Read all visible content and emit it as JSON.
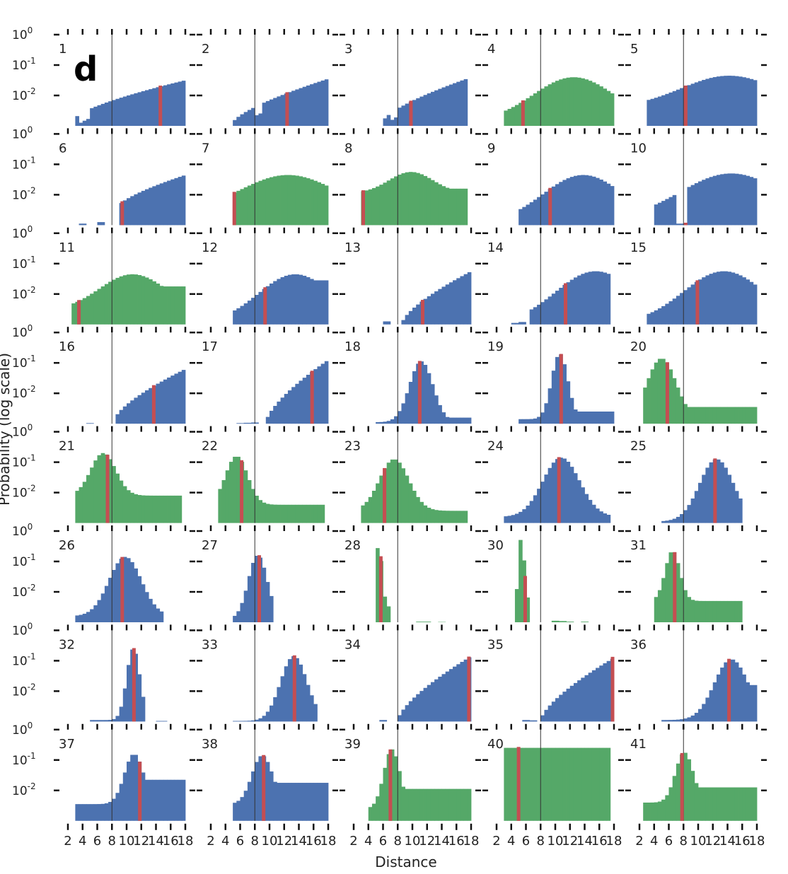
{
  "panel_label": "d",
  "xlabel": "Distance",
  "ylabel": "Probability (log scale)",
  "colors": {
    "blue": "#4c72b0",
    "green": "#55a868",
    "red": "#c44e52",
    "axis": "#111111",
    "refline": "#333333"
  },
  "chart_data": {
    "type": "bar",
    "layout": "small-multiples grid, 8 rows x 5 columns, shared axes",
    "scale_y": "log",
    "xlim": [
      2,
      18
    ],
    "ylim_log10": [
      -3.0,
      0
    ],
    "x_ticks": [
      2,
      4,
      6,
      8,
      10,
      12,
      14,
      16,
      18
    ],
    "x_tick_labels": [
      "2",
      "4",
      "6",
      "8",
      "10",
      "12",
      "14",
      "16",
      "18"
    ],
    "y_ticks_log10": [
      0,
      -1,
      -2
    ],
    "bins": 32,
    "reference_x": 8,
    "panels": [
      {
        "id": "1",
        "color": "blue",
        "marker_x": 14.6,
        "shape": "ramp",
        "start": 3,
        "end": 18,
        "lo": -2.75,
        "hi": -1.5,
        "dip": [
          4.2,
          0.3
        ]
      },
      {
        "id": "2",
        "color": "blue",
        "marker_x": 12.4,
        "shape": "ramp",
        "start": 5,
        "end": 18,
        "lo": -2.9,
        "hi": -1.45,
        "dip": [
          8.5,
          0.3
        ]
      },
      {
        "id": "3",
        "color": "blue",
        "marker_x": 9.8,
        "shape": "ramp",
        "start": 6,
        "end": 17.4,
        "lo": -2.85,
        "hi": -1.45,
        "dip": [
          7.5,
          0.25
        ]
      },
      {
        "id": "4",
        "color": "green",
        "marker_x": 5.6,
        "shape": "peak",
        "start": 3,
        "end": 18,
        "peak": 12.5,
        "peak_v": -1.4,
        "w": 5.5,
        "edge": -2.85
      },
      {
        "id": "5",
        "color": "blue",
        "marker_x": 8.3,
        "shape": "peak",
        "start": 3,
        "end": 18,
        "peak": 14.2,
        "peak_v": -1.35,
        "w": 6.5,
        "edge": -2.4
      },
      {
        "id": "6",
        "color": "blue",
        "marker_x": 9.4,
        "shape": "ramp",
        "start": 8.8,
        "end": 18,
        "lo": -2.4,
        "hi": -1.35,
        "tail": [
          [
            4,
            -2.95
          ],
          [
            6.5,
            -2.9
          ]
        ]
      },
      {
        "id": "7",
        "color": "green",
        "marker_x": 5.2,
        "shape": "peak",
        "start": 5,
        "end": 18,
        "peak": 12.5,
        "peak_v": -1.35,
        "w": 6.5,
        "edge": -2.6
      },
      {
        "id": "8",
        "color": "green",
        "marker_x": 3.3,
        "shape": "peak",
        "start": 3,
        "end": 17.4,
        "peak": 9.8,
        "peak_v": -1.25,
        "w": 3.0,
        "edge": -1.95,
        "floor": -1.8
      },
      {
        "id": "9",
        "color": "blue",
        "marker_x": 9.3,
        "shape": "peak",
        "start": 5,
        "end": 18,
        "peak": 13.8,
        "peak_v": -1.35,
        "w": 5.5,
        "edge": -2.95
      },
      {
        "id": "10",
        "color": "blue",
        "marker_x": 8.3,
        "shape": "peak",
        "start": 4,
        "end": 18,
        "peak": 14.5,
        "peak_v": -1.3,
        "w": 7.0,
        "edge": -2.85,
        "gap": [
          7,
          8.5
        ]
      },
      {
        "id": "11",
        "color": "green",
        "marker_x": 3.5,
        "shape": "peak",
        "start": 2.5,
        "end": 18,
        "peak": 10.8,
        "peak_v": -1.35,
        "w": 4.5,
        "edge": -2.55,
        "floor": -1.75
      },
      {
        "id": "12",
        "color": "blue",
        "marker_x": 9.4,
        "shape": "peak",
        "start": 5,
        "end": 18,
        "peak": 13.5,
        "peak_v": -1.35,
        "w": 5.0,
        "edge": -2.95,
        "floor": -1.55
      },
      {
        "id": "13",
        "color": "blue",
        "marker_x": 11.4,
        "shape": "ramp",
        "start": 8.6,
        "end": 18,
        "lo": -2.95,
        "hi": -1.25,
        "tail": [
          [
            6.5,
            -2.9
          ]
        ]
      },
      {
        "id": "14",
        "color": "blue",
        "marker_x": 11.4,
        "shape": "peak",
        "start": 6.5,
        "end": 17.4,
        "peak": 15.5,
        "peak_v": -1.25,
        "w": 5.5,
        "edge": -3.0,
        "tail": [
          [
            4.5,
            -2.95
          ],
          [
            5.5,
            -2.92
          ]
        ]
      },
      {
        "id": "15",
        "color": "blue",
        "marker_x": 9.9,
        "shape": "peak",
        "start": 3,
        "end": 18,
        "peak": 13.5,
        "peak_v": -1.25,
        "w": 5.5,
        "edge": -2.95
      },
      {
        "id": "16",
        "color": "blue",
        "marker_x": 13.7,
        "shape": "ramp",
        "start": 8.4,
        "end": 18,
        "lo": -2.85,
        "hi": -1.2,
        "tail": [
          [
            5,
            -2.98
          ]
        ]
      },
      {
        "id": "17",
        "color": "blue",
        "marker_x": 15.8,
        "shape": "ramp",
        "start": 9.5,
        "end": 18,
        "lo": -2.95,
        "hi": -0.9,
        "tail": [
          [
            6,
            -2.98
          ],
          [
            7,
            -2.97
          ],
          [
            8,
            -2.96
          ]
        ]
      },
      {
        "id": "18",
        "color": "blue",
        "marker_x": 11.0,
        "shape": "peak",
        "start": 5,
        "end": 18,
        "peak": 11.2,
        "peak_v": -0.95,
        "w": 1.6,
        "edge": -2.95,
        "floor": -2.8
      },
      {
        "id": "19",
        "color": "blue",
        "marker_x": 10.8,
        "shape": "peak",
        "start": 5,
        "end": 18,
        "peak": 10.6,
        "peak_v": -0.7,
        "w": 1.1,
        "edge": -2.85,
        "floor": -2.6
      },
      {
        "id": "20",
        "color": "green",
        "marker_x": 5.8,
        "shape": "peak",
        "start": 2.5,
        "end": 18,
        "peak": 5.0,
        "peak_v": -0.85,
        "w": 2.0,
        "edge": -2.9,
        "floor": -2.45
      },
      {
        "id": "21",
        "color": "green",
        "marker_x": 7.4,
        "shape": "peak",
        "start": 3,
        "end": 17.4,
        "peak": 6.8,
        "peak_v": -0.7,
        "w": 1.7,
        "edge": -2.1,
        "floor": -2.7
      },
      {
        "id": "22",
        "color": "green",
        "marker_x": 6.2,
        "shape": "peak",
        "start": 3,
        "end": 17.4,
        "peak": 5.5,
        "peak_v": -0.8,
        "w": 1.5,
        "edge": -2.4,
        "floor": -2.5
      },
      {
        "id": "23",
        "color": "green",
        "marker_x": 6.2,
        "shape": "peak",
        "start": 3,
        "end": 17.4,
        "peak": 7.5,
        "peak_v": -0.9,
        "w": 2.0,
        "edge": -2.6,
        "floor": -2.75
      },
      {
        "id": "24",
        "color": "blue",
        "marker_x": 10.5,
        "shape": "peak",
        "start": 3,
        "end": 17.4,
        "peak": 10.8,
        "peak_v": -0.85,
        "w": 2.5,
        "edge": -2.8,
        "floor": -3.0
      },
      {
        "id": "25",
        "color": "blue",
        "marker_x": 12.3,
        "shape": "peak",
        "start": 5,
        "end": 16,
        "peak": 12.5,
        "peak_v": -0.9,
        "w": 2.3,
        "edge": -2.95,
        "floor": -3.0
      },
      {
        "id": "26",
        "color": "blue",
        "marker_x": 9.4,
        "shape": "peak",
        "start": 3,
        "end": 15,
        "peak": 9.8,
        "peak_v": -0.85,
        "w": 2.2,
        "edge": -2.8,
        "floor": -3.05
      },
      {
        "id": "27",
        "color": "blue",
        "marker_x": 8.6,
        "shape": "peak",
        "start": 5,
        "end": 10.5,
        "peak": 8.4,
        "peak_v": -0.8,
        "w": 1.3,
        "edge": -2.9
      },
      {
        "id": "28",
        "color": "green",
        "marker_x": 5.7,
        "shape": "spike",
        "start": 5,
        "end": 7,
        "peak": 5.4,
        "peak_v": -0.45,
        "w": 0.45,
        "edge": -2.5,
        "specks": [
          [
            11,
            -2.98
          ],
          [
            12,
            -2.98
          ],
          [
            14,
            -2.99
          ]
        ]
      },
      {
        "id": "30",
        "color": "green",
        "marker_x": 5.9,
        "shape": "spike",
        "start": 4.5,
        "end": 6.5,
        "peak": 5.4,
        "peak_v": -0.1,
        "w": 0.35,
        "edge": -2.3,
        "specks": [
          [
            10,
            -2.95
          ],
          [
            11,
            -2.96
          ],
          [
            12,
            -2.98
          ],
          [
            14,
            -2.98
          ]
        ]
      },
      {
        "id": "31",
        "color": "green",
        "marker_x": 6.8,
        "shape": "peak",
        "start": 4,
        "end": 16,
        "peak": 6.5,
        "peak_v": -0.65,
        "w": 1.0,
        "edge": -2.3,
        "floor": -2.95
      },
      {
        "id": "32",
        "color": "blue",
        "marker_x": 11.0,
        "shape": "peak",
        "start": 5,
        "end": 12.5,
        "peak": 10.9,
        "peak_v": -0.6,
        "w": 0.9,
        "edge": -2.95,
        "floor": -2.85,
        "specks": [
          [
            14.5,
            -2.98
          ],
          [
            15,
            -2.98
          ]
        ]
      },
      {
        "id": "33",
        "color": "blue",
        "marker_x": 13.4,
        "shape": "peak",
        "start": 5,
        "end": 16.5,
        "peak": 13.3,
        "peak_v": -0.85,
        "w": 1.8,
        "edge": -2.98
      },
      {
        "id": "34",
        "color": "blue",
        "marker_x": 17.7,
        "shape": "ramp",
        "start": 8,
        "end": 18,
        "lo": -2.95,
        "hi": -0.85,
        "tail": [
          [
            6,
            -2.95
          ]
        ]
      },
      {
        "id": "35",
        "color": "blue",
        "marker_x": 18.5,
        "shape": "ramp",
        "start": 8,
        "end": 18,
        "lo": -2.95,
        "hi": -0.9,
        "tail": [
          [
            6,
            -2.95
          ],
          [
            7,
            -2.96
          ]
        ]
      },
      {
        "id": "36",
        "color": "blue",
        "marker_x": 14.2,
        "shape": "peak",
        "start": 5,
        "end": 18,
        "peak": 14.5,
        "peak_v": -0.95,
        "w": 2.3,
        "edge": -2.95,
        "floor": -1.8
      },
      {
        "id": "37",
        "color": "blue",
        "marker_x": 11.8,
        "shape": "peak",
        "start": 3,
        "end": 18,
        "peak": 11.0,
        "peak_v": -0.8,
        "w": 1.3,
        "edge": -2.45,
        "floor": -1.65
      },
      {
        "id": "38",
        "color": "blue",
        "marker_x": 9.2,
        "shape": "peak",
        "start": 5,
        "end": 18,
        "peak": 9.0,
        "peak_v": -0.85,
        "w": 1.4,
        "edge": -2.45,
        "floor": -1.75
      },
      {
        "id": "39",
        "color": "green",
        "marker_x": 7.0,
        "shape": "peak",
        "start": 4,
        "end": 18,
        "peak": 7.2,
        "peak_v": -0.65,
        "w": 1.1,
        "edge": -2.6,
        "floor": -1.95
      },
      {
        "id": "40",
        "color": "green",
        "marker_x": 5.0,
        "shape": "peak",
        "start": 3,
        "end": 17.4,
        "peak": 3.7,
        "peak_v": -0.6,
        "w": 1.0,
        "edge": -0.6,
        "floor": -2.15
      },
      {
        "id": "41",
        "color": "green",
        "marker_x": 7.8,
        "shape": "peak",
        "start": 2.5,
        "end": 18,
        "peak": 8.1,
        "peak_v": -0.75,
        "w": 1.2,
        "edge": -2.4,
        "floor": -1.9
      }
    ]
  }
}
